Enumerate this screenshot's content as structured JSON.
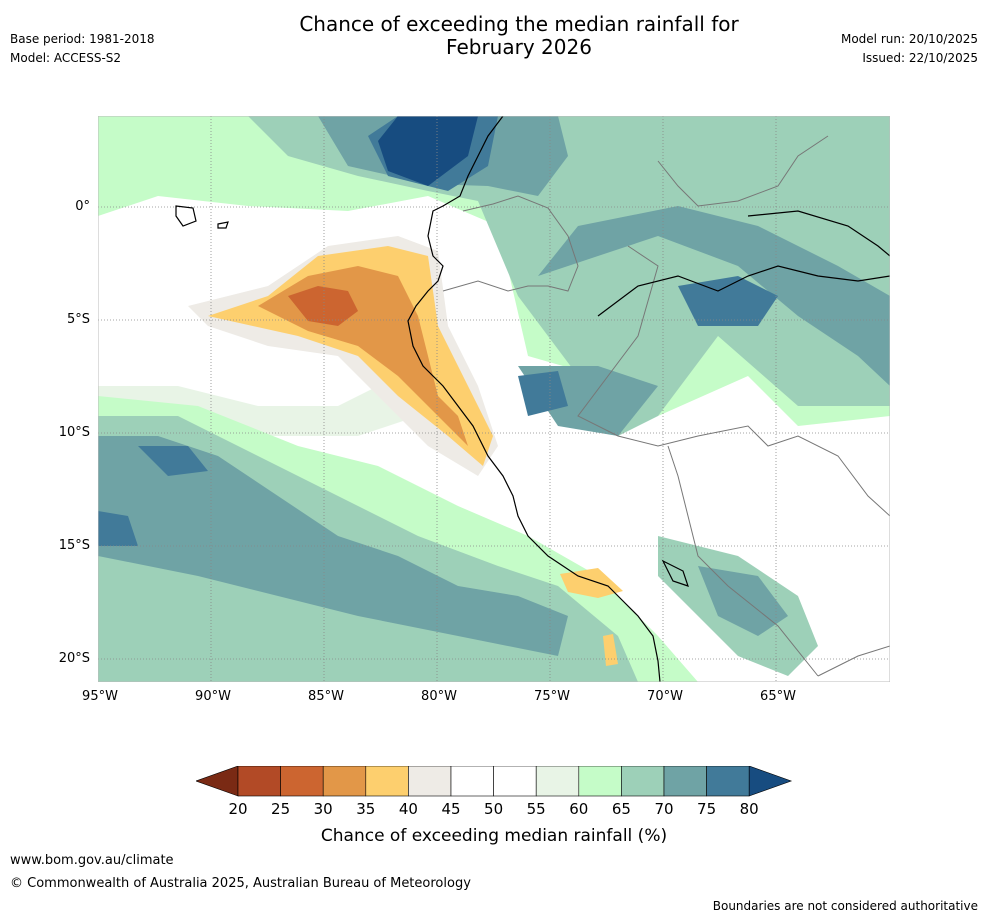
{
  "header": {
    "title_line1": "Chance of exceeding the median rainfall for",
    "title_line2": "February 2026",
    "base_period": "Base period: 1981-2018",
    "model": "Model: ACCESS-S2",
    "model_run": "Model run: 20/10/2025",
    "issued": "Issued: 22/10/2025"
  },
  "map": {
    "lat_labels": [
      "0°",
      "5°S",
      "10°S",
      "15°S",
      "20°S"
    ],
    "lon_labels": [
      "95°W",
      "90°W",
      "85°W",
      "80°W",
      "75°W",
      "70°W",
      "65°W"
    ],
    "extent": {
      "lon_min": -95,
      "lon_max": -60,
      "lat_min": -21,
      "lat_max": 4
    }
  },
  "legend": {
    "ticks": [
      "20",
      "25",
      "30",
      "35",
      "40",
      "45",
      "50",
      "55",
      "60",
      "65",
      "70",
      "75",
      "80"
    ],
    "label": "Chance of exceeding median rainfall (%)",
    "colors": [
      "#7a2a14",
      "#b24a26",
      "#cc6530",
      "#e29748",
      "#fdcf6e",
      "#eeebe6",
      "#ffffff",
      "#ffffff",
      "#e8f4e6",
      "#c5fcc8",
      "#9dd0b8",
      "#6fa3a5",
      "#417a99",
      "#174c80"
    ]
  },
  "footer": {
    "website": "www.bom.gov.au/climate",
    "copyright": "© Commonwealth of Australia 2025, Australian Bureau of Meteorology",
    "disclaimer": "Boundaries are not considered authoritative"
  }
}
